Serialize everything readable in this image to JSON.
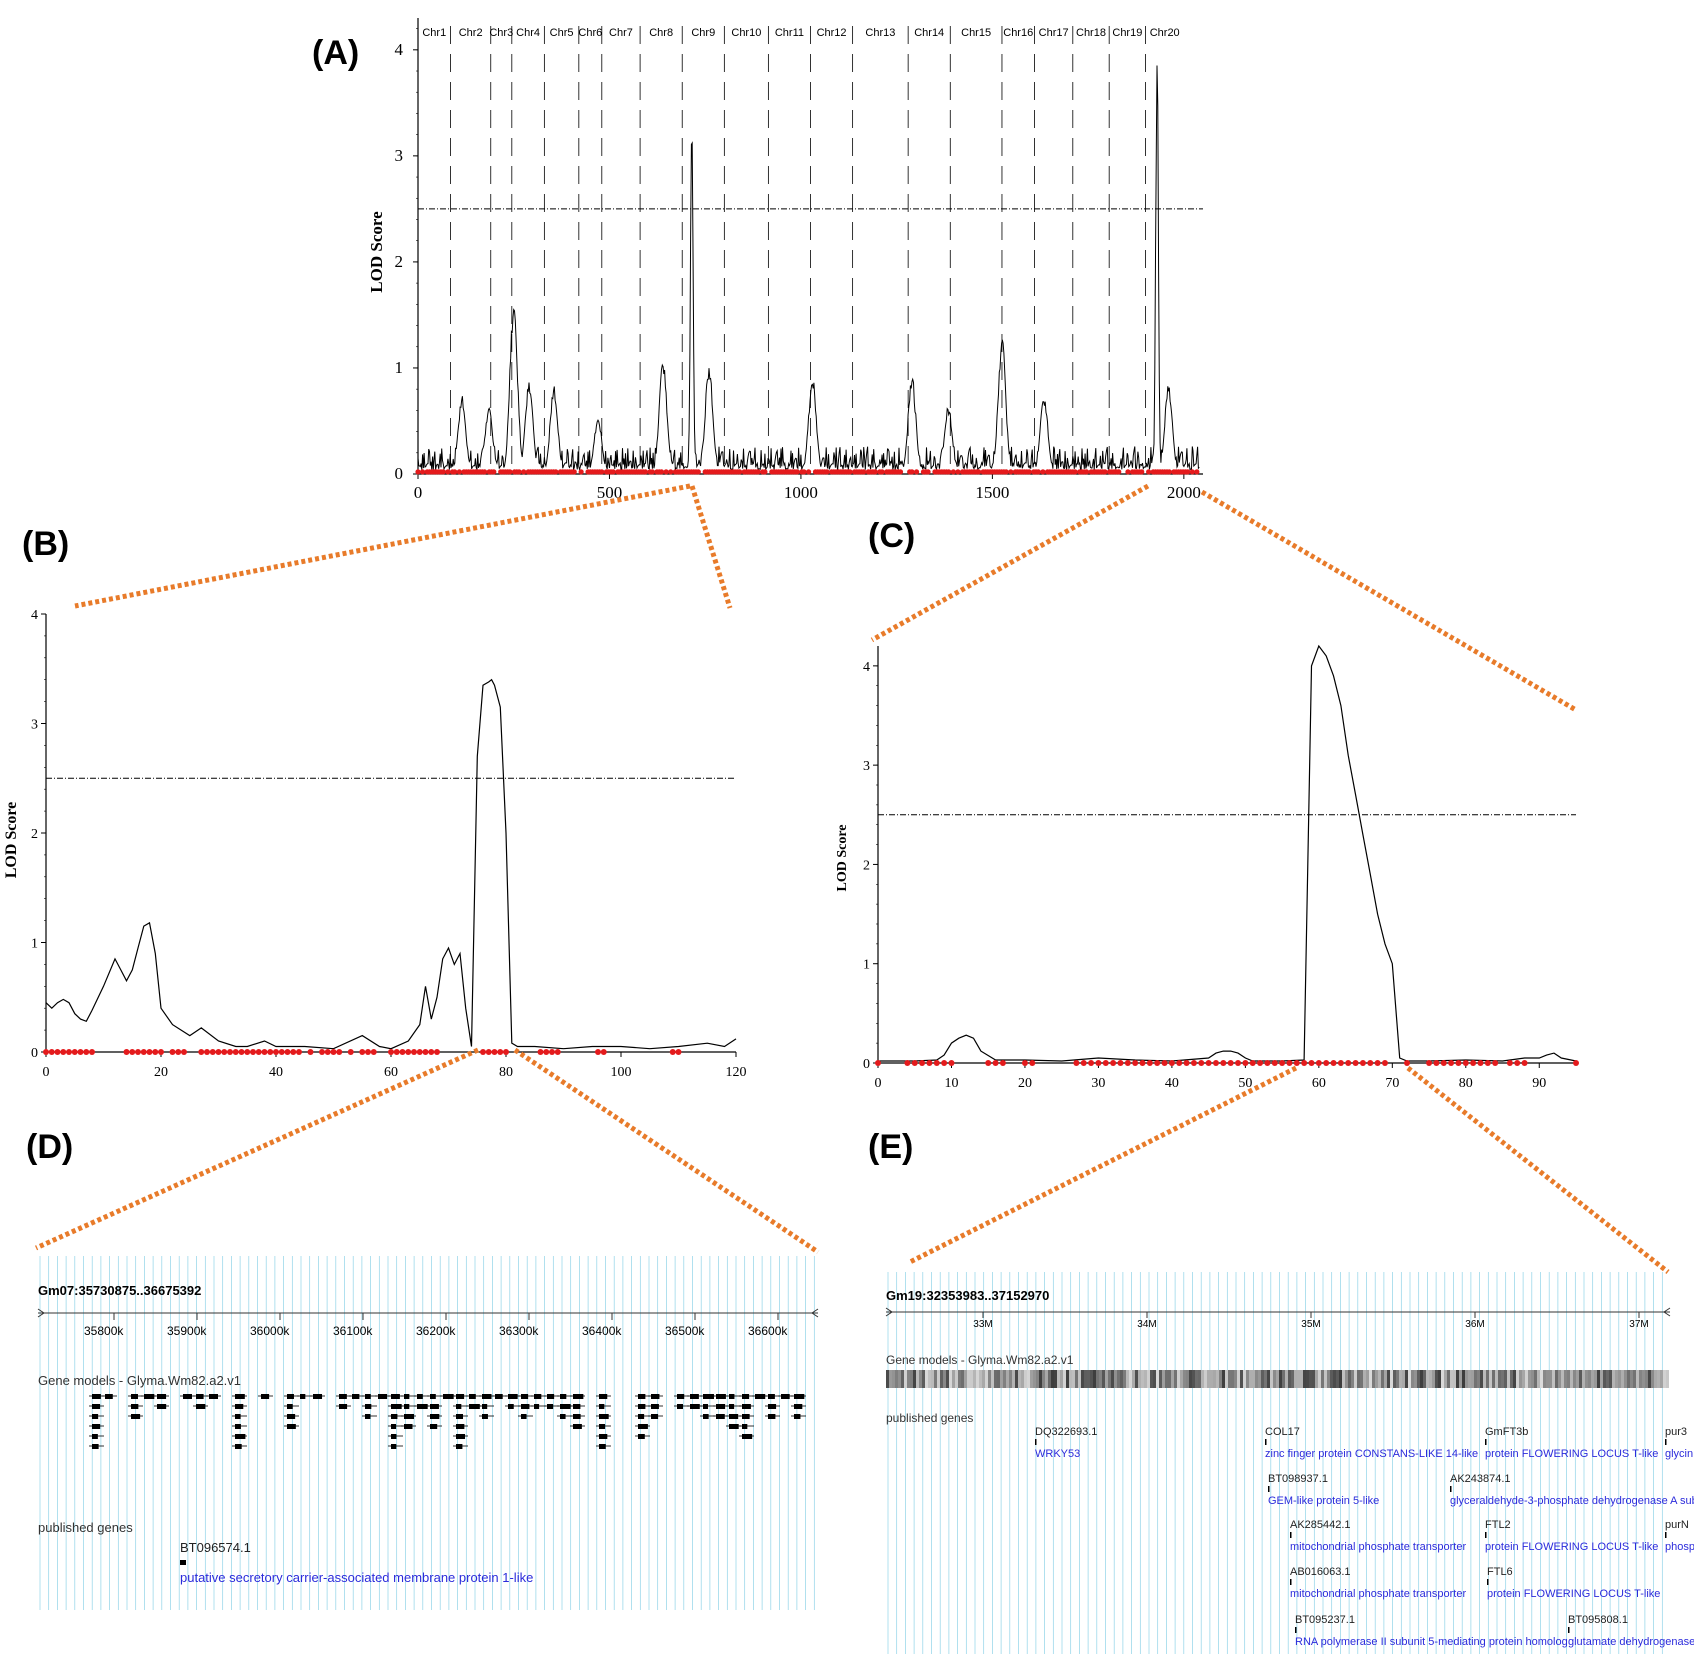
{
  "panels": {
    "A": {
      "label": "(A)"
    },
    "B": {
      "label": "(B)"
    },
    "C": {
      "label": "(C)"
    },
    "D": {
      "label": "(D)"
    },
    "E": {
      "label": "(E)"
    }
  },
  "colors": {
    "line": "#000000",
    "marker": "#e41a1c",
    "zoom": "#e87b2a",
    "grid": "#8fd3e8",
    "gene_link": "#2b2bdb"
  },
  "chart_data": [
    {
      "id": "A",
      "type": "line",
      "ylabel": "LOD Score",
      "xlim": [
        0,
        2050
      ],
      "ylim": [
        0,
        4.3
      ],
      "xticks": [
        "0",
        "500",
        "1000",
        "1500",
        "2000"
      ],
      "yticks": [
        "0",
        "1",
        "2",
        "3",
        "4"
      ],
      "threshold": 2.5,
      "chromosomes": [
        "Chr1",
        "Chr2",
        "Chr3",
        "Chr4",
        "Chr5",
        "Chr6",
        "Chr7",
        "Chr8",
        "Chr9",
        "Chr10",
        "Chr11",
        "Chr12",
        "Chr13",
        "Chr14",
        "Chr15",
        "Chr16",
        "Chr17",
        "Chr18",
        "Chr19",
        "Chr20"
      ],
      "chromosome_boundaries": [
        85,
        190,
        245,
        330,
        420,
        480,
        580,
        690,
        800,
        915,
        1025,
        1135,
        1280,
        1390,
        1525,
        1610,
        1710,
        1805,
        1900,
        2000
      ],
      "peaks": [
        {
          "x": 115,
          "y": 0.75
        },
        {
          "x": 185,
          "y": 0.65
        },
        {
          "x": 250,
          "y": 1.65
        },
        {
          "x": 290,
          "y": 0.9
        },
        {
          "x": 355,
          "y": 0.85
        },
        {
          "x": 470,
          "y": 0.55
        },
        {
          "x": 640,
          "y": 1.1
        },
        {
          "x": 715,
          "y": 3.35
        },
        {
          "x": 760,
          "y": 1.05
        },
        {
          "x": 1030,
          "y": 0.95
        },
        {
          "x": 1290,
          "y": 0.95
        },
        {
          "x": 1385,
          "y": 0.65
        },
        {
          "x": 1525,
          "y": 1.3
        },
        {
          "x": 1635,
          "y": 0.75
        },
        {
          "x": 1930,
          "y": 4.2
        },
        {
          "x": 1960,
          "y": 0.85
        }
      ]
    },
    {
      "id": "B",
      "type": "line",
      "ylabel": "LOD Score",
      "xlim": [
        0,
        120
      ],
      "ylim": [
        0,
        4
      ],
      "xticks": [
        "0",
        "20",
        "40",
        "60",
        "80",
        "100",
        "120"
      ],
      "yticks": [
        "0",
        "1",
        "2",
        "3",
        "4"
      ],
      "threshold": 2.5,
      "x": [
        0,
        1,
        2,
        3,
        4,
        5,
        6,
        7,
        8,
        10,
        12,
        13,
        14,
        15,
        16,
        17,
        18,
        19,
        20,
        22,
        25,
        27,
        30,
        33,
        35,
        38,
        40,
        45,
        50,
        55,
        58,
        60,
        63,
        65,
        66,
        67,
        68,
        69,
        70,
        71,
        72,
        73,
        74,
        75,
        76,
        77,
        77.5,
        78,
        79,
        80,
        81,
        82,
        85,
        90,
        95,
        100,
        105,
        110,
        115,
        118,
        120
      ],
      "y": [
        0.45,
        0.4,
        0.45,
        0.48,
        0.45,
        0.35,
        0.3,
        0.28,
        0.38,
        0.6,
        0.85,
        0.75,
        0.65,
        0.75,
        0.95,
        1.15,
        1.18,
        0.9,
        0.4,
        0.25,
        0.15,
        0.22,
        0.1,
        0.05,
        0.05,
        0.1,
        0.05,
        0.05,
        0.03,
        0.15,
        0.05,
        0.03,
        0.1,
        0.25,
        0.6,
        0.3,
        0.5,
        0.85,
        0.95,
        0.8,
        0.9,
        0.4,
        0.05,
        2.7,
        3.35,
        3.38,
        3.4,
        3.35,
        3.15,
        2.0,
        0.08,
        0.05,
        0.05,
        0.03,
        0.05,
        0.05,
        0.03,
        0.05,
        0.08,
        0.05,
        0.12
      ],
      "markers": [
        0,
        1,
        2,
        3,
        4,
        5,
        6,
        7,
        8,
        14,
        15,
        16,
        17,
        18,
        19,
        20,
        22,
        23,
        24,
        27,
        28,
        29,
        30,
        31,
        32,
        33,
        34,
        35,
        36,
        37,
        38,
        39,
        40,
        41,
        42,
        43,
        44,
        46,
        48,
        49,
        50,
        51,
        53,
        55,
        56,
        57,
        60,
        61,
        62,
        63,
        64,
        65,
        66,
        67,
        68,
        76,
        77,
        78,
        79,
        80,
        86,
        87,
        88,
        89,
        96,
        97,
        109,
        110
      ]
    },
    {
      "id": "C",
      "type": "line",
      "ylabel": "LOD Score",
      "xlim": [
        0,
        95
      ],
      "ylim": [
        0,
        4.2
      ],
      "xticks": [
        "0",
        "10",
        "20",
        "30",
        "40",
        "50",
        "60",
        "70",
        "80",
        "90"
      ],
      "yticks": [
        "0",
        "1",
        "2",
        "3",
        "4"
      ],
      "threshold": 2.5,
      "x": [
        0,
        5,
        8,
        9,
        10,
        11,
        12,
        13,
        14,
        16,
        20,
        25,
        30,
        35,
        40,
        45,
        46,
        47,
        48,
        49,
        50,
        51,
        55,
        58,
        58.5,
        59,
        60,
        61,
        62,
        63,
        64,
        65,
        66,
        67,
        68,
        69,
        70,
        71,
        72,
        75,
        80,
        85,
        88,
        90,
        91,
        92,
        93,
        95
      ],
      "y": [
        0.02,
        0.02,
        0.03,
        0.08,
        0.2,
        0.25,
        0.28,
        0.25,
        0.12,
        0.03,
        0.03,
        0.02,
        0.05,
        0.03,
        0.02,
        0.05,
        0.1,
        0.12,
        0.12,
        0.1,
        0.05,
        0.02,
        0.02,
        0.03,
        2.0,
        4.0,
        4.2,
        4.1,
        3.9,
        3.6,
        3.1,
        2.7,
        2.3,
        1.9,
        1.5,
        1.2,
        1.0,
        0.05,
        0.02,
        0.02,
        0.03,
        0.02,
        0.05,
        0.05,
        0.08,
        0.1,
        0.05,
        0.02
      ],
      "markers": [
        0,
        4,
        5,
        6,
        7,
        8,
        9,
        10,
        15,
        16,
        17,
        20,
        21,
        27,
        28,
        29,
        30,
        31,
        32,
        33,
        34,
        35,
        36,
        37,
        38,
        39,
        40,
        41,
        42,
        43,
        44,
        45,
        46,
        47,
        48,
        49,
        50,
        51,
        52,
        53,
        54,
        55,
        56,
        57,
        58,
        59,
        60,
        61,
        62,
        63,
        64,
        65,
        66,
        67,
        68,
        69,
        72,
        75,
        76,
        77,
        78,
        79,
        80,
        81,
        82,
        83,
        84,
        86,
        87,
        88,
        95
      ]
    }
  ],
  "browser_D": {
    "title": "Gm07:35730875..36675392",
    "ticks": [
      "35800k",
      "35900k",
      "36000k",
      "36100k",
      "36200k",
      "36300k",
      "36400k",
      "36500k",
      "36600k"
    ],
    "track_gene_models": "Gene models - Glyma.Wm82.a2.v1",
    "track_published": "published genes",
    "genes": [
      {
        "id": "BT096574.1",
        "desc": "putative secretory carrier-associated membrane protein 1-like"
      }
    ]
  },
  "browser_E": {
    "title": "Gm19:32353983..37152970",
    "ticks": [
      "33M",
      "34M",
      "35M",
      "36M",
      "37M"
    ],
    "track_gene_models": "Gene models - Glyma.Wm82.a2.v1",
    "track_published": "published genes",
    "genes": [
      {
        "id": "DQ322693.1",
        "desc": "WRKY53"
      },
      {
        "id": "COL17",
        "desc": "zinc finger protein CONSTANS-LIKE 14-like"
      },
      {
        "id": "BT098937.1",
        "desc": "GEM-like protein 5-like"
      },
      {
        "id": "AK285442.1",
        "desc": "mitochondrial phosphate transporter"
      },
      {
        "id": "AB016063.1",
        "desc": "mitochondrial phosphate transporter"
      },
      {
        "id": "BT095237.1",
        "desc": "RNA polymerase II subunit 5-mediating protein homolog"
      },
      {
        "id": "GmFT3b",
        "desc": "protein FLOWERING LOCUS T-like"
      },
      {
        "id": "AK243874.1",
        "desc": "glyceraldehyde-3-phosphate dehydrogenase A subu"
      },
      {
        "id": "FTL2",
        "desc": "protein FLOWERING LOCUS T-like"
      },
      {
        "id": "FTL6",
        "desc": "protein FLOWERING LOCUS T-like"
      },
      {
        "id": "BT095808.1",
        "desc": "glutamate dehydrogenase"
      },
      {
        "id": "pur3",
        "desc": "glycin"
      },
      {
        "id": "purN",
        "desc": "phosp"
      }
    ]
  }
}
